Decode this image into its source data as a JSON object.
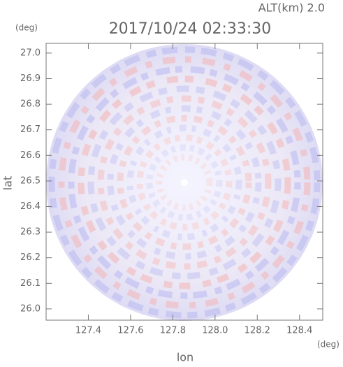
{
  "chart_data": {
    "type": "radar-image",
    "title": "2017/10/24 02:33:30",
    "altitude_label": "ALT(km) 2.0",
    "x_label": "lon",
    "y_label": "lat",
    "x_unit": "(deg)",
    "y_unit": "(deg)",
    "xlim": [
      127.2,
      128.51
    ],
    "ylim": [
      25.956,
      27.038
    ],
    "xticks": [
      127.4,
      127.6,
      127.8,
      {
        "value": 128,
        "label": "128.0"
      },
      128.2,
      128.4
    ],
    "yticks": [
      {
        "value": 26,
        "label": "26.0"
      },
      26.1,
      26.2,
      26.3,
      26.4,
      26.5,
      26.6,
      26.7,
      26.8,
      26.9,
      {
        "value": 27,
        "label": "27.0"
      }
    ]
  }
}
